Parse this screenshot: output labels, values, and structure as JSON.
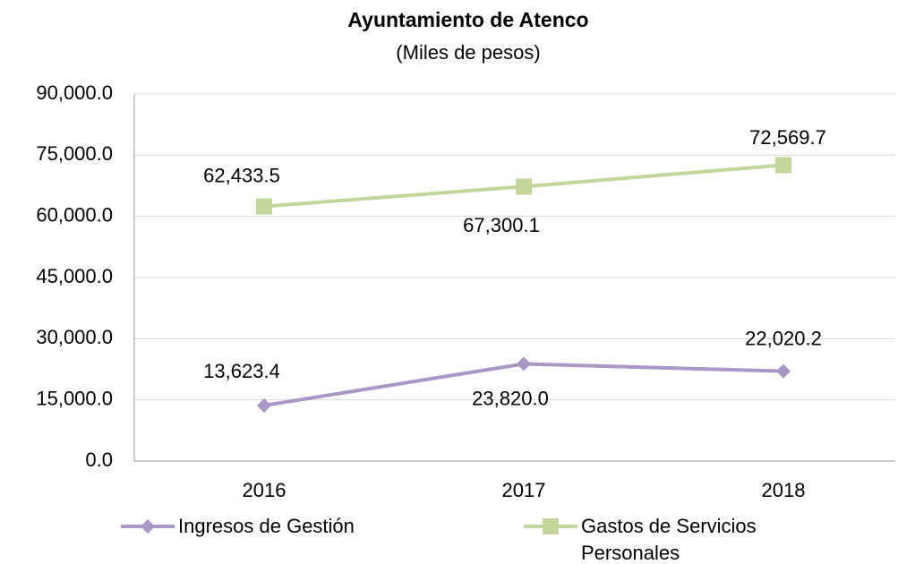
{
  "chart_data": {
    "type": "line",
    "title": "Ayuntamiento de Atenco",
    "subtitle": "(Miles de pesos)",
    "categories": [
      "2016",
      "2017",
      "2018"
    ],
    "series": [
      {
        "name": "Ingresos de Gestión",
        "color": "#a897c7",
        "marker": "diamond",
        "values": [
          13623.4,
          23820.0,
          22020.2
        ],
        "value_labels": [
          "13,623.4",
          "23,820.0",
          "22,020.2"
        ]
      },
      {
        "name": "Gastos de Servicios Personales",
        "color": "#c3d69b",
        "marker": "square",
        "values": [
          62433.5,
          67300.1,
          72569.7
        ],
        "value_labels": [
          "62,433.5",
          "67,300.1",
          "72,569.7"
        ]
      }
    ],
    "ylim": [
      0,
      90000
    ],
    "yticks": [
      {
        "value": 0,
        "label": "0.0"
      },
      {
        "value": 15000,
        "label": "15,000.0"
      },
      {
        "value": 30000,
        "label": "30,000.0"
      },
      {
        "value": 45000,
        "label": "45,000.0"
      },
      {
        "value": 60000,
        "label": "60,000.0"
      },
      {
        "value": 75000,
        "label": "75,000.0"
      },
      {
        "value": 90000,
        "label": "90,000.0"
      }
    ],
    "grid": true,
    "legend": "bottom"
  }
}
